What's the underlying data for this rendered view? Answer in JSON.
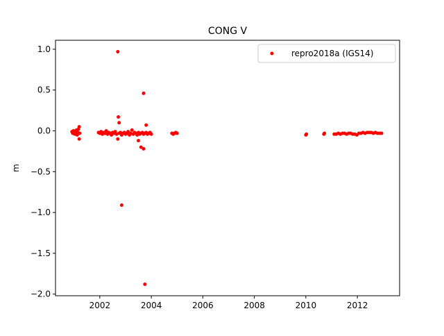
{
  "chart_data": {
    "type": "scatter",
    "title": "CONG V",
    "y_label": "m",
    "xlim": [
      2000.28,
      2013.64
    ],
    "xticks": [
      2002,
      2004,
      2006,
      2008,
      2010,
      2012
    ],
    "ylim": [
      -2.02,
      1.11
    ],
    "yticks": [
      {
        "value": 1.0,
        "label": "1.0"
      },
      {
        "value": 0.5,
        "label": "0.5"
      },
      {
        "value": 0.0,
        "label": "0.0"
      },
      {
        "value": -0.5,
        "label": "−0.5"
      },
      {
        "value": -1.0,
        "label": "−1.0"
      },
      {
        "value": -1.5,
        "label": "−1.5"
      },
      {
        "value": -2.0,
        "label": "−2.0"
      }
    ],
    "legend_position": "upper right",
    "series": [
      {
        "name": "repro2018a (IGS14)",
        "color": "#ff0000",
        "x": [
          2000.92,
          2000.95,
          2000.98,
          2001.0,
          2001.03,
          2001.05,
          2001.08,
          2001.1,
          2001.12,
          2001.15,
          2001.17,
          2001.2,
          2001.2,
          2001.22,
          2001.95,
          2002.0,
          2002.05,
          2002.1,
          2002.15,
          2002.2,
          2002.25,
          2002.3,
          2002.35,
          2002.4,
          2002.45,
          2002.5,
          2002.55,
          2002.6,
          2002.65,
          2002.7,
          2002.7,
          2002.72,
          2002.75,
          2002.75,
          2002.8,
          2002.85,
          2002.85,
          2002.9,
          2002.95,
          2003.0,
          2003.05,
          2003.1,
          2003.15,
          2003.2,
          2003.25,
          2003.3,
          2003.35,
          2003.4,
          2003.45,
          2003.5,
          2003.5,
          2003.55,
          2003.6,
          2003.6,
          2003.65,
          2003.7,
          2003.7,
          2003.7,
          2003.75,
          2003.75,
          2003.8,
          2003.8,
          2003.85,
          2003.9,
          2003.95,
          2004.0,
          2004.8,
          2004.85,
          2004.9,
          2004.95,
          2005.0,
          2010.0,
          2010.02,
          2010.7,
          2010.72,
          2011.1,
          2011.18,
          2011.26,
          2011.34,
          2011.42,
          2011.5,
          2011.58,
          2011.66,
          2011.74,
          2011.82,
          2011.9,
          2011.98,
          2012.06,
          2012.14,
          2012.22,
          2012.3,
          2012.38,
          2012.46,
          2012.54,
          2012.62,
          2012.7,
          2012.78,
          2012.86,
          2012.94
        ],
        "values": [
          -0.01,
          -0.03,
          0.0,
          -0.02,
          -0.04,
          -0.01,
          -0.03,
          0.01,
          -0.05,
          -0.02,
          0.02,
          0.05,
          -0.1,
          -0.03,
          -0.02,
          -0.03,
          -0.01,
          -0.04,
          -0.02,
          -0.03,
          0.0,
          -0.04,
          -0.02,
          -0.03,
          -0.05,
          -0.02,
          -0.03,
          -0.01,
          -0.04,
          0.97,
          -0.1,
          0.17,
          0.1,
          -0.03,
          -0.02,
          -0.91,
          -0.05,
          -0.03,
          -0.02,
          -0.04,
          -0.03,
          -0.01,
          -0.05,
          -0.03,
          0.01,
          -0.04,
          -0.02,
          -0.03,
          -0.05,
          -0.12,
          -0.02,
          -0.04,
          -0.2,
          -0.03,
          -0.02,
          0.46,
          -0.22,
          -0.04,
          -1.88,
          -0.03,
          0.07,
          -0.02,
          -0.04,
          -0.03,
          -0.02,
          -0.04,
          -0.03,
          -0.04,
          -0.03,
          -0.02,
          -0.03,
          -0.05,
          -0.04,
          -0.04,
          -0.03,
          -0.04,
          -0.04,
          -0.03,
          -0.04,
          -0.03,
          -0.03,
          -0.04,
          -0.03,
          -0.03,
          -0.04,
          -0.04,
          -0.05,
          -0.03,
          -0.03,
          -0.02,
          -0.03,
          -0.02,
          -0.02,
          -0.02,
          -0.03,
          -0.02,
          -0.03,
          -0.03,
          -0.03
        ]
      }
    ]
  }
}
